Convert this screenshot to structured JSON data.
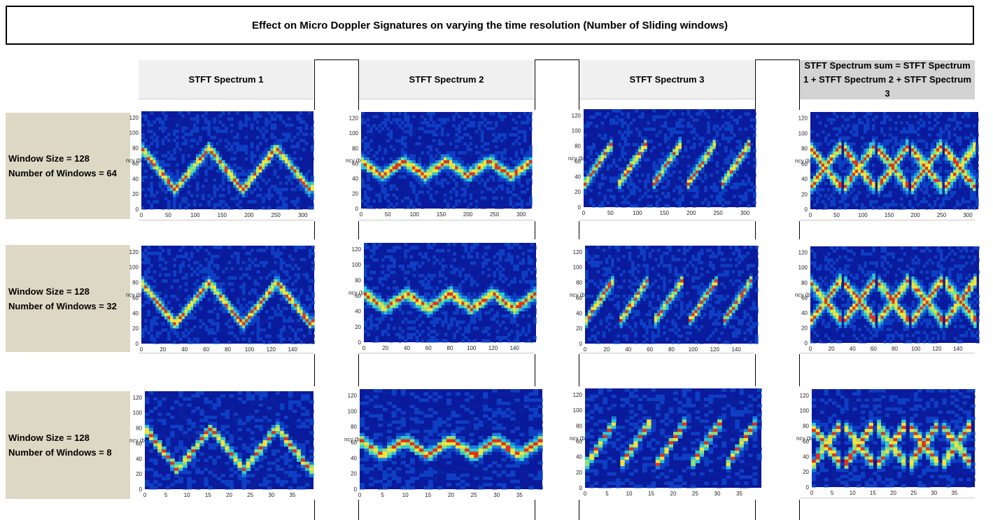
{
  "title": "Effect on Micro Doppler Signatures on varying the time resolution (Number of Sliding windows)",
  "column_headers": [
    "STFT Spectrum 1",
    "STFT Spectrum 2",
    "STFT Spectrum 3",
    "STFT Spectrum sum = STFT Spectrum 1 + STFT Spectrum 2 + STFT Spectrum 3"
  ],
  "rows": [
    {
      "window_size": "Window Size = 128",
      "num_windows": "Number of Windows = 64"
    },
    {
      "window_size": "Window Size = 128",
      "num_windows": "Number of Windows = 32"
    },
    {
      "window_size": "Window Size = 128",
      "num_windows": "Number of Windows = 8"
    }
  ],
  "axis_ylabel_fragment": "ncy (b",
  "y_ticks": [
    "0",
    "20",
    "40",
    "60",
    "80",
    "100",
    "120"
  ],
  "x_ticks_by_row": [
    [
      "0",
      "50",
      "100",
      "150",
      "200",
      "250",
      "300"
    ],
    [
      "0",
      "20",
      "40",
      "60",
      "80",
      "100",
      "120",
      "140"
    ],
    [
      "0",
      "5",
      "10",
      "15",
      "20",
      "25",
      "30",
      "35"
    ]
  ],
  "x_max_by_row": [
    320,
    160,
    40
  ],
  "colors": {
    "background_low": "#0a1a9c",
    "mid": "#27c6d0",
    "high": "#f1e33b",
    "peak": "#e2301c",
    "label_bg": "#ddd8c4"
  },
  "chart_data": [
    {
      "type": "heatmap",
      "pattern": "spectrum-1 zigzag: band 80→25→80→25→80→35, period ~125 (row 1)"
    },
    {
      "type": "heatmap",
      "pattern": "spectrum-2 small oscillation 40–65 (row 1)"
    },
    {
      "type": "heatmap",
      "pattern": "spectrum-3 rising segments 25→85, 5 segments (row 1)"
    },
    {
      "type": "heatmap",
      "pattern": "sum: X crossings around 50 (row 1)"
    }
  ]
}
